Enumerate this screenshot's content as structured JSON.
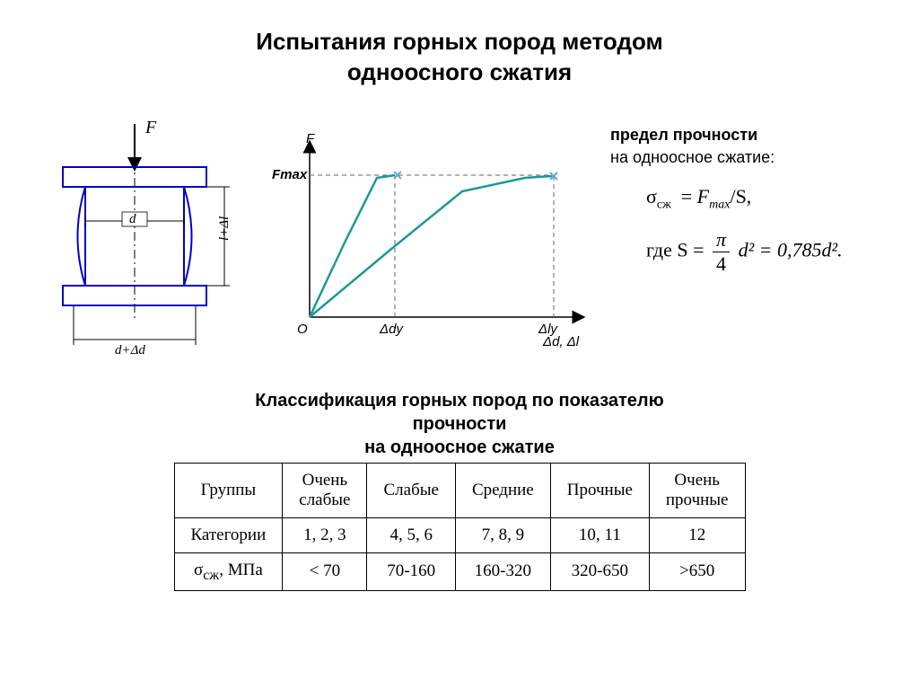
{
  "title": "Испытания горных пород методом\nодноосного сжатия",
  "diagram": {
    "stroke": "#0000cc",
    "stroke_width": 2,
    "labels": {
      "F": "F",
      "d": "d",
      "d_dd": "d+Δd",
      "l_dl": "l+Δl"
    }
  },
  "chart": {
    "stroke_axis": "#000000",
    "stroke_curve": "#1a9999",
    "curve_width": 2.5,
    "marker_color": "#66aadd",
    "dash_color": "#666666",
    "labels": {
      "y": "F",
      "Fmax": "Fmax",
      "O": "O",
      "ddy": "Δdy",
      "dly": "Δly",
      "xaxis": "Δd,  Δl"
    },
    "curves": [
      {
        "points": [
          [
            0,
            0
          ],
          [
            40,
            85
          ],
          [
            75,
            155
          ],
          [
            95,
            158
          ]
        ],
        "end": [
          98,
          158
        ]
      },
      {
        "points": [
          [
            0,
            0
          ],
          [
            90,
            75
          ],
          [
            170,
            140
          ],
          [
            240,
            155
          ],
          [
            270,
            157
          ]
        ],
        "end": [
          272,
          157
        ]
      }
    ],
    "dashes": [
      [
        95,
        158,
        95,
        0
      ],
      [
        272,
        157,
        272,
        0
      ],
      [
        0,
        158,
        272,
        158
      ]
    ],
    "axis": {
      "xlen": 300,
      "ylen": 190
    }
  },
  "formulas": {
    "lead_bold": "предел прочности",
    "lead_rest": "на одноосное сжатие:",
    "f1_lhs": "σ",
    "f1_sub": "сж",
    "f1_rhs_a": "F",
    "f1_rhs_sub": "max",
    "f1_rhs_b": "/S,",
    "f2_pre": "где   S  =",
    "f2_num": "π",
    "f2_den": "4",
    "f2_post": "d² = 0,785d²."
  },
  "subtitle": "Классификация горных пород по показателю\nпрочности\nна одноосное сжатие",
  "table": {
    "rows": [
      [
        "Группы",
        "Очень слабые",
        "Слабые",
        "Средние",
        "Прочные",
        "Очень прочные"
      ],
      [
        "Категории",
        "1, 2, 3",
        "4, 5, 6",
        "7, 8, 9",
        "10, 11",
        "12"
      ],
      [
        "σсж, МПа",
        "< 70",
        "70-160",
        "160-320",
        "320-650",
        ">650"
      ]
    ],
    "sigma_row_label": {
      "sym": "σ",
      "sub": "сж",
      "rest": ", МПа"
    }
  }
}
